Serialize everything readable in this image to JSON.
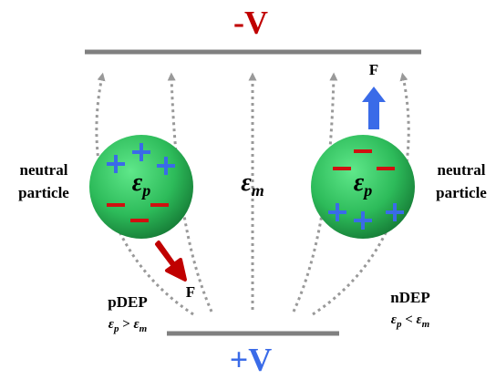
{
  "electrodes": {
    "top": "-V",
    "bottom": "+V"
  },
  "medium": {
    "base": "ε",
    "sub": "m"
  },
  "particles": [
    {
      "lines": [
        "neutral",
        "particle"
      ],
      "permittivity": {
        "base": "ε",
        "sub": "p"
      },
      "force": "F",
      "mode": "pDEP",
      "condition": {
        "left": {
          "base": "ε",
          "sub": "p"
        },
        "op": " > ",
        "right": {
          "base": "ε",
          "sub": "m"
        }
      }
    },
    {
      "lines": [
        "neutral",
        "particle"
      ],
      "permittivity": {
        "base": "ε",
        "sub": "p"
      },
      "force": "F",
      "mode": "nDEP",
      "condition": {
        "left": {
          "base": "ε",
          "sub": "p"
        },
        "op": " < ",
        "right": {
          "base": "ε",
          "sub": "m"
        }
      }
    }
  ]
}
